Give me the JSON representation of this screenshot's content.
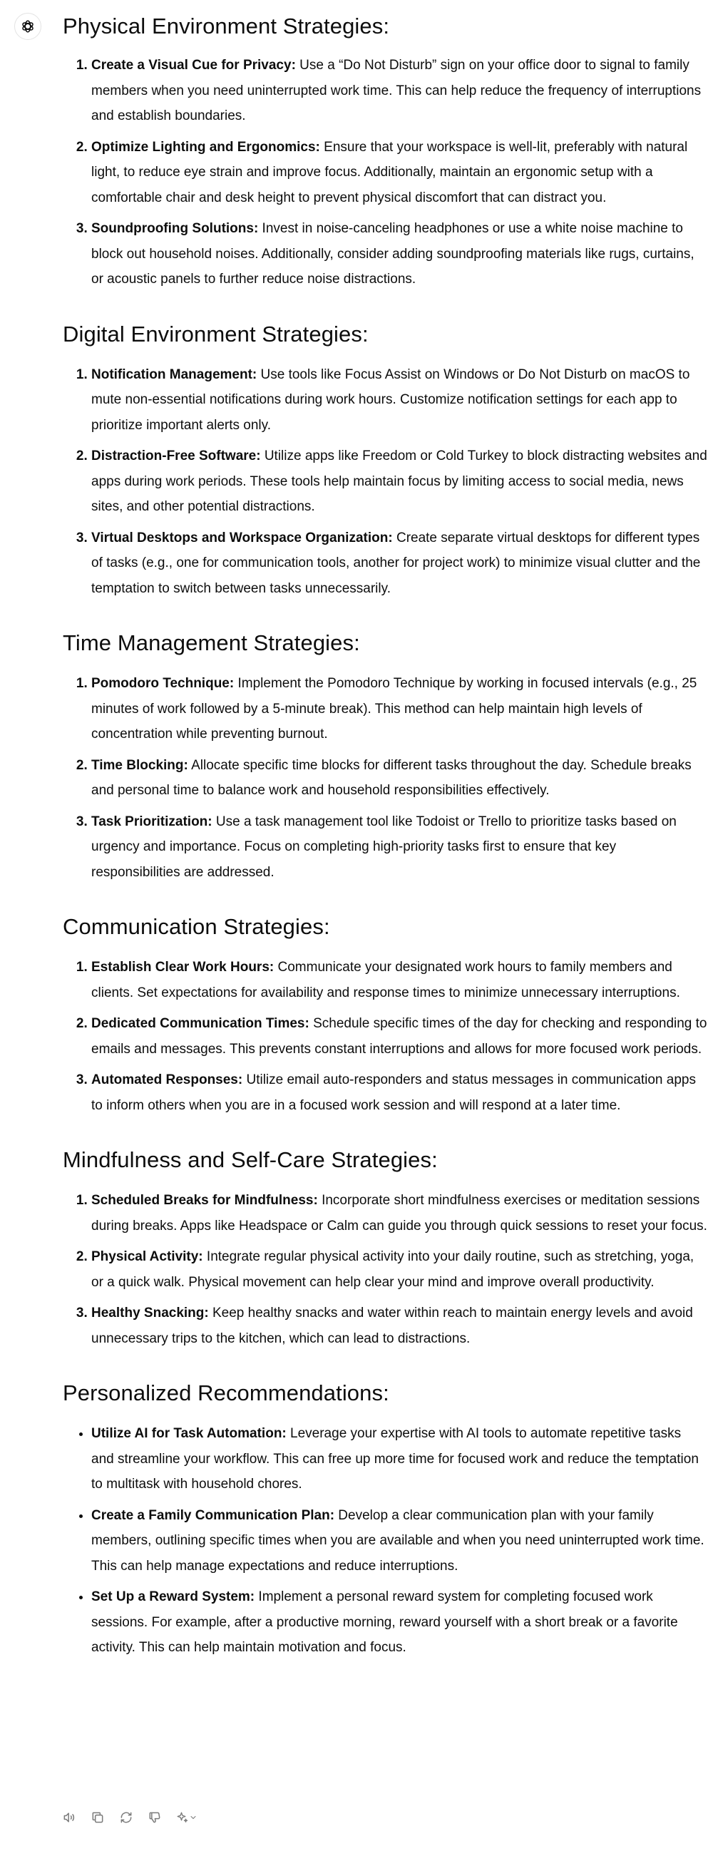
{
  "sections": [
    {
      "title": "Physical Environment Strategies:",
      "items": [
        {
          "label": "Create a Visual Cue for Privacy:",
          "text": " Use a “Do Not Disturb” sign on your office door to signal to family members when you need uninterrupted work time. This can help reduce the frequency of interruptions and establish boundaries."
        },
        {
          "label": "Optimize Lighting and Ergonomics:",
          "text": " Ensure that your workspace is well-lit, preferably with natural light, to reduce eye strain and improve focus. Additionally, maintain an ergonomic setup with a comfortable chair and desk height to prevent physical discomfort that can distract you."
        },
        {
          "label": "Soundproofing Solutions:",
          "text": " Invest in noise-canceling headphones or use a white noise machine to block out household noises. Additionally, consider adding soundproofing materials like rugs, curtains, or acoustic panels to further reduce noise distractions."
        }
      ]
    },
    {
      "title": "Digital Environment Strategies:",
      "items": [
        {
          "label": "Notification Management:",
          "text": " Use tools like Focus Assist on Windows or Do Not Disturb on macOS to mute non-essential notifications during work hours. Customize notification settings for each app to prioritize important alerts only."
        },
        {
          "label": "Distraction-Free Software:",
          "text": " Utilize apps like Freedom or Cold Turkey to block distracting websites and apps during work periods. These tools help maintain focus by limiting access to social media, news sites, and other potential distractions."
        },
        {
          "label": "Virtual Desktops and Workspace Organization:",
          "text": " Create separate virtual desktops for different types of tasks (e.g., one for communication tools, another for project work) to minimize visual clutter and the temptation to switch between tasks unnecessarily."
        }
      ]
    },
    {
      "title": "Time Management Strategies:",
      "items": [
        {
          "label": "Pomodoro Technique:",
          "text": " Implement the Pomodoro Technique by working in focused intervals (e.g., 25 minutes of work followed by a 5-minute break). This method can help maintain high levels of concentration while preventing burnout."
        },
        {
          "label": "Time Blocking:",
          "text": " Allocate specific time blocks for different tasks throughout the day. Schedule breaks and personal time to balance work and household responsibilities effectively."
        },
        {
          "label": "Task Prioritization:",
          "text": " Use a task management tool like Todoist or Trello to prioritize tasks based on urgency and importance. Focus on completing high-priority tasks first to ensure that key responsibilities are addressed."
        }
      ]
    },
    {
      "title": "Communication Strategies:",
      "items": [
        {
          "label": "Establish Clear Work Hours:",
          "text": " Communicate your designated work hours to family members and clients. Set expectations for availability and response times to minimize unnecessary interruptions."
        },
        {
          "label": "Dedicated Communication Times:",
          "text": " Schedule specific times of the day for checking and responding to emails and messages. This prevents constant interruptions and allows for more focused work periods."
        },
        {
          "label": "Automated Responses:",
          "text": " Utilize email auto-responders and status messages in communication apps to inform others when you are in a focused work session and will respond at a later time."
        }
      ]
    },
    {
      "title": "Mindfulness and Self-Care Strategies:",
      "items": [
        {
          "label": "Scheduled Breaks for Mindfulness:",
          "text": " Incorporate short mindfulness exercises or meditation sessions during breaks. Apps like Headspace or Calm can guide you through quick sessions to reset your focus."
        },
        {
          "label": "Physical Activity:",
          "text": " Integrate regular physical activity into your daily routine, such as stretching, yoga, or a quick walk. Physical movement can help clear your mind and improve overall productivity."
        },
        {
          "label": "Healthy Snacking:",
          "text": " Keep healthy snacks and water within reach to maintain energy levels and avoid unnecessary trips to the kitchen, which can lead to distractions."
        }
      ]
    },
    {
      "title": "Personalized Recommendations:",
      "items": [
        {
          "label": "Utilize AI for Task Automation:",
          "text": " Leverage your expertise with AI tools to automate repetitive tasks and streamline your workflow. This can free up more time for focused work and reduce the temptation to multitask with household chores."
        },
        {
          "label": "Create a Family Communication Plan:",
          "text": " Develop a clear communication plan with your family members, outlining specific times when you are available and when you need uninterrupted work time. This can help manage expectations and reduce interruptions."
        },
        {
          "label": "Set Up a Reward System:",
          "text": " Implement a personal reward system for completing focused work sessions. For example, after a productive morning, reward yourself with a short break or a favorite activity. This can help maintain motivation and focus."
        }
      ]
    }
  ],
  "icons": {
    "avatar": "openai-logo-icon",
    "toolbar": [
      "read-aloud-icon",
      "copy-icon",
      "regenerate-icon",
      "thumbs-down-icon",
      "change-model-sparkle-icon"
    ]
  }
}
